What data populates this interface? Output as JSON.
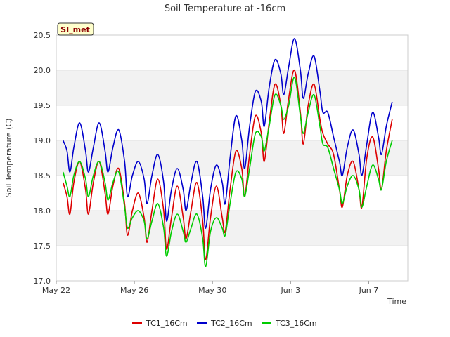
{
  "chart_data": {
    "type": "line",
    "title": "Soil Temperature at -16cm",
    "xlabel": "Time",
    "ylabel": "Soil Temperature (C)",
    "site_badge": "SI_met",
    "ylim": [
      17.0,
      20.5
    ],
    "yticks": [
      "17.0",
      "17.5",
      "18.0",
      "18.5",
      "19.0",
      "19.5",
      "20.0",
      "20.5"
    ],
    "xlim_days": [
      0,
      18
    ],
    "xticks": [
      {
        "day": 0,
        "label": "May 22"
      },
      {
        "day": 4,
        "label": "May 26"
      },
      {
        "day": 8,
        "label": "May 30"
      },
      {
        "day": 12,
        "label": "Jun 3"
      },
      {
        "day": 16,
        "label": "Jun 7"
      }
    ],
    "x_days": [
      0.35,
      0.55,
      0.7,
      0.9,
      1.2,
      1.5,
      1.65,
      1.9,
      2.2,
      2.5,
      2.65,
      2.9,
      3.2,
      3.5,
      3.65,
      3.9,
      4.2,
      4.5,
      4.65,
      4.9,
      5.2,
      5.5,
      5.65,
      5.9,
      6.2,
      6.5,
      6.65,
      6.9,
      7.2,
      7.5,
      7.65,
      7.9,
      8.2,
      8.5,
      8.65,
      8.9,
      9.2,
      9.5,
      9.65,
      9.9,
      10.2,
      10.5,
      10.65,
      10.9,
      11.2,
      11.5,
      11.65,
      11.9,
      12.2,
      12.5,
      12.65,
      12.9,
      13.2,
      13.5,
      13.65,
      13.9,
      14.2,
      14.5,
      14.65,
      14.9,
      15.2,
      15.5,
      15.65,
      15.9,
      16.2,
      16.5,
      16.65,
      16.9,
      17.2
    ],
    "series": [
      {
        "name": "TC1_16Cm",
        "color": "#dd0000",
        "values": [
          18.4,
          18.2,
          17.95,
          18.4,
          18.7,
          18.3,
          17.95,
          18.4,
          18.7,
          18.25,
          17.95,
          18.35,
          18.6,
          18.1,
          17.65,
          18.0,
          18.25,
          17.9,
          17.55,
          18.0,
          18.45,
          18.0,
          17.45,
          17.9,
          18.35,
          17.9,
          17.6,
          18.0,
          18.4,
          17.85,
          17.3,
          17.9,
          18.35,
          17.9,
          17.7,
          18.3,
          18.85,
          18.6,
          18.2,
          18.8,
          19.35,
          19.1,
          18.7,
          19.25,
          19.8,
          19.5,
          19.1,
          19.6,
          20.0,
          19.4,
          18.95,
          19.5,
          19.8,
          19.3,
          19.1,
          18.95,
          18.8,
          18.3,
          18.05,
          18.5,
          18.7,
          18.3,
          18.05,
          18.75,
          19.05,
          18.6,
          18.3,
          18.85,
          19.3
        ]
      },
      {
        "name": "TC2_16Cm",
        "color": "#0000cc",
        "values": [
          19.0,
          18.85,
          18.55,
          18.9,
          19.25,
          18.85,
          18.55,
          18.9,
          19.25,
          18.85,
          18.55,
          18.9,
          19.15,
          18.7,
          18.2,
          18.5,
          18.7,
          18.45,
          18.1,
          18.5,
          18.8,
          18.4,
          17.85,
          18.3,
          18.6,
          18.3,
          18.0,
          18.4,
          18.7,
          18.2,
          17.75,
          18.3,
          18.65,
          18.4,
          18.1,
          18.75,
          19.35,
          19.0,
          18.6,
          19.2,
          19.7,
          19.55,
          19.2,
          19.75,
          20.15,
          19.95,
          19.65,
          20.05,
          20.45,
          20.0,
          19.6,
          19.95,
          20.2,
          19.7,
          19.4,
          19.4,
          19.05,
          18.7,
          18.5,
          18.9,
          19.15,
          18.8,
          18.5,
          18.95,
          19.4,
          19.05,
          18.8,
          19.2,
          19.55
        ]
      },
      {
        "name": "TC3_16Cm",
        "color": "#00cc00",
        "values": [
          18.55,
          18.35,
          18.2,
          18.5,
          18.7,
          18.45,
          18.2,
          18.5,
          18.7,
          18.4,
          18.15,
          18.4,
          18.55,
          18.05,
          17.75,
          17.9,
          18.0,
          17.85,
          17.6,
          17.85,
          18.1,
          17.75,
          17.35,
          17.7,
          17.95,
          17.7,
          17.55,
          17.75,
          17.95,
          17.6,
          17.2,
          17.7,
          17.9,
          17.75,
          17.65,
          18.1,
          18.55,
          18.45,
          18.2,
          18.6,
          19.1,
          19.05,
          18.85,
          19.2,
          19.65,
          19.5,
          19.3,
          19.5,
          19.9,
          19.35,
          19.1,
          19.4,
          19.65,
          19.2,
          18.95,
          18.9,
          18.6,
          18.3,
          18.1,
          18.35,
          18.5,
          18.3,
          18.05,
          18.35,
          18.65,
          18.45,
          18.3,
          18.7,
          19.0
        ]
      }
    ]
  }
}
